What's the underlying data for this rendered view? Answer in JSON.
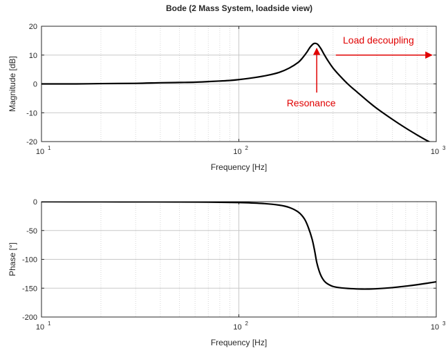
{
  "chart_data": [
    {
      "type": "line",
      "title": "Bode (2 Mass System, loadside view)",
      "xlabel": "Frequency [Hz]",
      "ylabel": "Magnitude [dB]",
      "xscale": "log",
      "xlim": [
        10,
        1000
      ],
      "ylim": [
        -20,
        20
      ],
      "grid": true,
      "x_tick_labels": [
        {
          "base": "10",
          "exp": "1"
        },
        {
          "base": "10",
          "exp": "2"
        },
        {
          "base": "10",
          "exp": "3"
        }
      ],
      "y_tick_labels": [
        "20",
        "10",
        "0",
        "-10",
        "-20"
      ],
      "series": [
        {
          "x": [
            10,
            15,
            20,
            30,
            40,
            50,
            60,
            70,
            80,
            90,
            100,
            120,
            140,
            160,
            180,
            200,
            210,
            220,
            230,
            240,
            250,
            260,
            270,
            280,
            300,
            330,
            360,
            400,
            450,
            500,
            600,
            700,
            800,
            900,
            950
          ],
          "values": [
            0.0,
            0.0,
            0.1,
            0.2,
            0.4,
            0.5,
            0.6,
            0.8,
            1.0,
            1.2,
            1.5,
            2.2,
            3.0,
            4.0,
            5.5,
            7.5,
            9.0,
            10.8,
            12.8,
            14.0,
            13.8,
            12.3,
            10.3,
            8.5,
            5.5,
            2.3,
            -0.3,
            -3.0,
            -6.0,
            -8.5,
            -12.3,
            -15.3,
            -17.7,
            -19.7,
            -20.5
          ],
          "color": "#000000"
        }
      ],
      "annotations": [
        {
          "text": "Load decoupling",
          "arrow": "right"
        },
        {
          "text": "Resonance",
          "arrow": "up"
        }
      ]
    },
    {
      "type": "line",
      "xlabel": "Frequency [Hz]",
      "ylabel": "Phase [°]",
      "xscale": "log",
      "xlim": [
        10,
        1000
      ],
      "ylim": [
        -200,
        0
      ],
      "grid": true,
      "x_tick_labels": [
        {
          "base": "10",
          "exp": "1"
        },
        {
          "base": "10",
          "exp": "2"
        },
        {
          "base": "10",
          "exp": "3"
        }
      ],
      "y_tick_labels": [
        "0",
        "-50",
        "-100",
        "-150",
        "-200"
      ],
      "series": [
        {
          "x": [
            10,
            20,
            30,
            50,
            70,
            100,
            130,
            160,
            180,
            200,
            215,
            225,
            235,
            242,
            248,
            255,
            262,
            270,
            280,
            300,
            330,
            370,
            420,
            450,
            500,
            600,
            700,
            800,
            1000
          ],
          "values": [
            0,
            -0.2,
            -0.3,
            -0.5,
            -0.8,
            -1.5,
            -3,
            -6,
            -10,
            -18,
            -30,
            -45,
            -65,
            -85,
            -105,
            -120,
            -130,
            -137,
            -142,
            -147,
            -149.5,
            -150.8,
            -151.5,
            -151.5,
            -151,
            -149,
            -146.5,
            -144,
            -139
          ],
          "color": "#000000"
        }
      ]
    }
  ]
}
